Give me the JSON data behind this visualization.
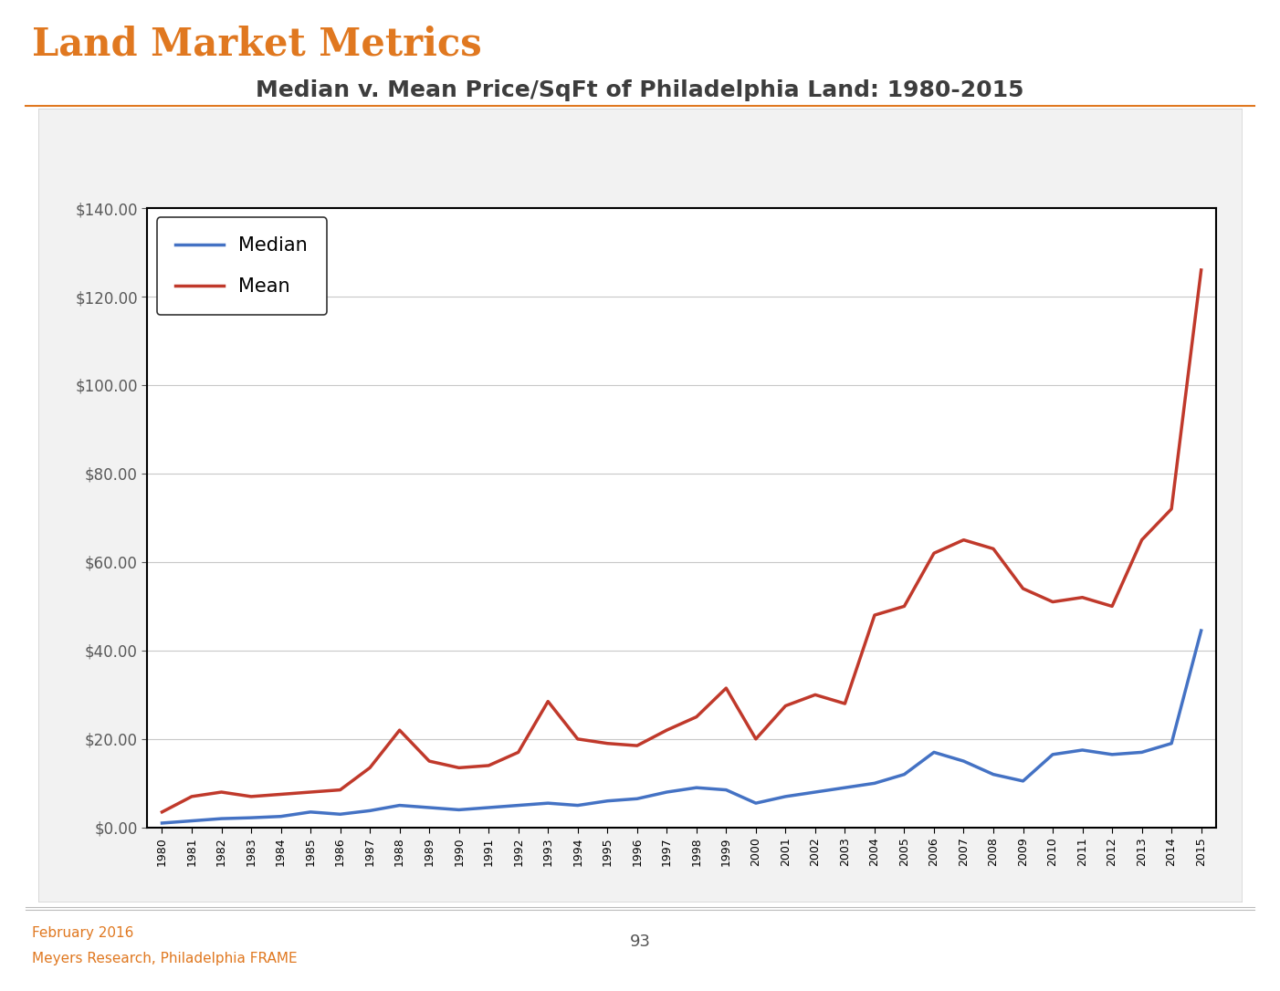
{
  "title": "Median v. Mean Price/SqFt of Philadelphia Land: 1980-2015",
  "page_title": "Land Market Metrics",
  "years": [
    1980,
    1981,
    1982,
    1983,
    1984,
    1985,
    1986,
    1987,
    1988,
    1989,
    1990,
    1991,
    1992,
    1993,
    1994,
    1995,
    1996,
    1997,
    1998,
    1999,
    2000,
    2001,
    2002,
    2003,
    2004,
    2005,
    2006,
    2007,
    2008,
    2009,
    2010,
    2011,
    2012,
    2013,
    2014,
    2015
  ],
  "median": [
    1.0,
    1.5,
    2.0,
    2.2,
    2.5,
    3.5,
    3.0,
    3.8,
    5.0,
    4.5,
    4.0,
    4.5,
    5.0,
    5.5,
    5.0,
    6.0,
    6.5,
    8.0,
    9.0,
    8.5,
    5.5,
    7.0,
    8.0,
    9.0,
    10.0,
    12.0,
    17.0,
    15.0,
    12.0,
    10.5,
    16.5,
    17.5,
    16.5,
    17.0,
    19.0,
    44.5
  ],
  "mean": [
    3.5,
    7.0,
    8.0,
    7.0,
    7.5,
    8.0,
    8.5,
    13.5,
    22.0,
    15.0,
    13.5,
    14.0,
    17.0,
    28.5,
    20.0,
    19.0,
    18.5,
    22.0,
    25.0,
    31.5,
    20.0,
    27.5,
    30.0,
    28.0,
    48.0,
    50.0,
    62.0,
    65.0,
    63.0,
    54.0,
    51.0,
    52.0,
    50.0,
    65.0,
    72.0,
    126.0
  ],
  "median_color": "#4472c4",
  "mean_color": "#c0392b",
  "ylim": [
    0,
    140
  ],
  "yticks": [
    0,
    20,
    40,
    60,
    80,
    100,
    120,
    140
  ],
  "background_outer": "#f2f2f2",
  "background_plot": "#ffffff",
  "grid_color": "#c8c8c8",
  "border_color": "#000000",
  "ytick_color": "#595959",
  "xtick_color": "#000000",
  "footer_orange": "#e07820",
  "footer_left_line1": "February 2016",
  "footer_left_line2": "Meyers Research, Philadelphia FRAME",
  "page_number": "93",
  "title_fontsize": 18,
  "legend_fontsize": 15,
  "ytick_fontsize": 12,
  "xtick_fontsize": 9
}
